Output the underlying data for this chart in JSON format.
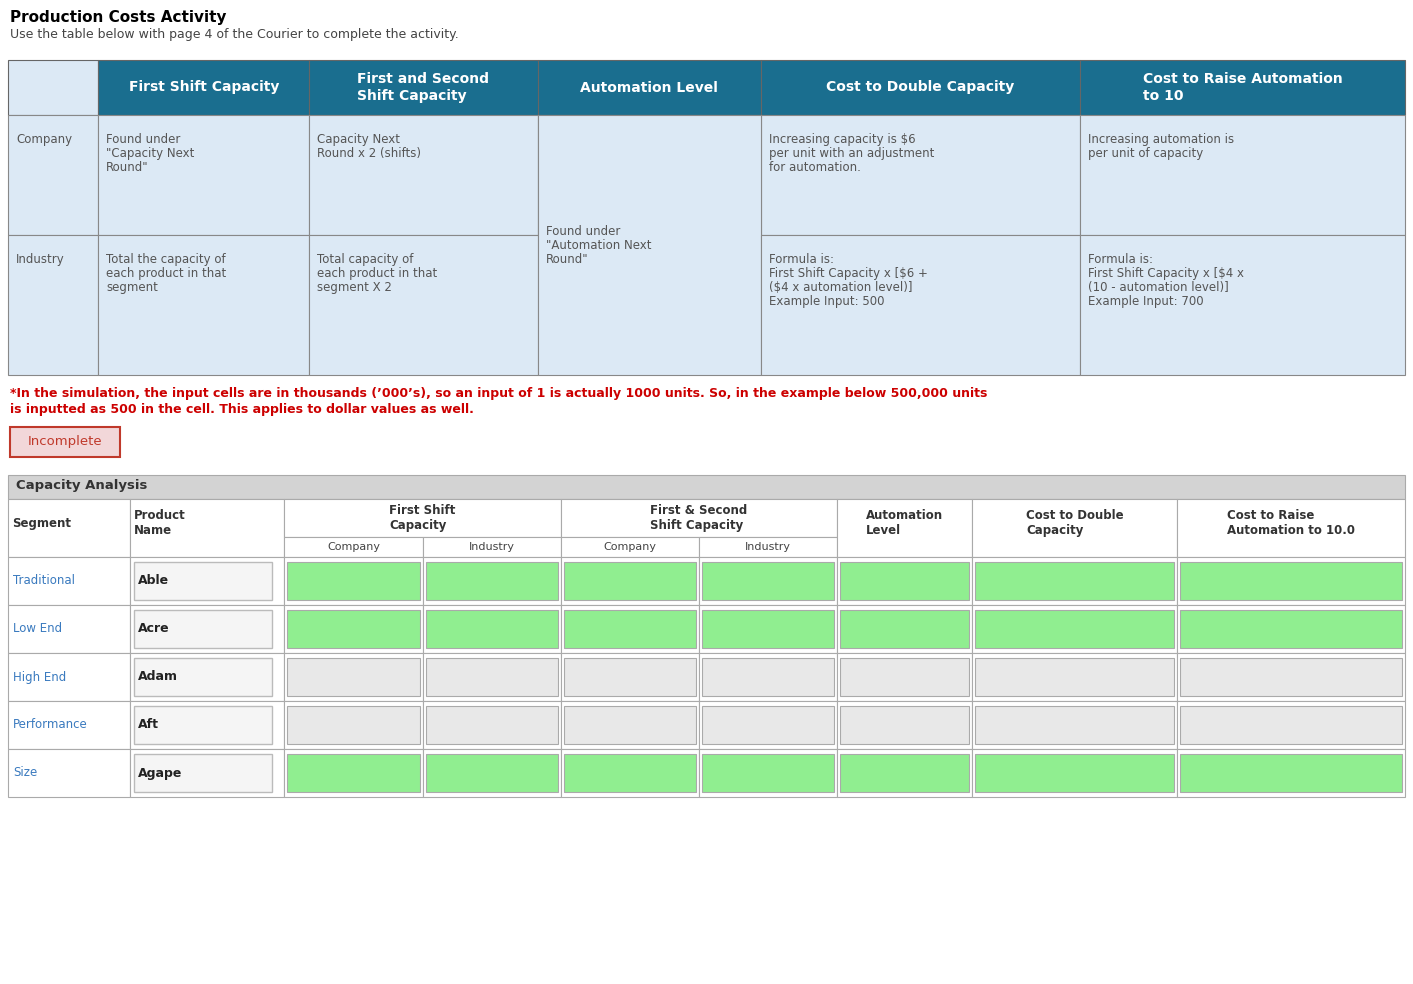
{
  "title": "Production Costs Activity",
  "subtitle": "Use the table below with page 4 of the Courier to complete the activity.",
  "header_bg": "#1a6e8f",
  "header_text_color": "#ffffff",
  "cell_bg_light": "#dce9f5",
  "note_text_line1": "*In the simulation, the input cells are in thousands (’000’s), so an input of 1 is actually 1000 units. So, in the example below 500,000 units",
  "note_text_line2": "is inputted as 500 in the cell. This applies to dollar values as well.",
  "incomplete_label": "Incomplete",
  "incomplete_bg": "#f2d7d9",
  "incomplete_text_color": "#c0392b",
  "incomplete_border": "#c0392b",
  "table2_title": "Capacity Analysis",
  "green_cell": "#90ee90",
  "white_cell": "#e8e8e8",
  "table2_header_bg": "#d3d3d3",
  "table1_headers": [
    "",
    "First Shift Capacity",
    "First and Second\nShift Capacity",
    "Automation Level",
    "Cost to Double Capacity",
    "Cost to Raise Automation\nto 10"
  ],
  "table1_company_row": [
    "Company",
    "Found under\n\"Capacity Next\nRound\"",
    "Capacity Next\nRound x 2 (shifts)",
    "",
    "Increasing capacity is $6\nper unit with an adjustment\nfor automation.",
    "Increasing automation is\nper unit of capacity"
  ],
  "table1_industry_row": [
    "Industry",
    "Total the capacity of\neach product in that\nsegment",
    "Total capacity of\neach product in that\nsegment X 2",
    "Found under\n\"Automation Next\nRound\"",
    "Formula is:\nFirst Shift Capacity x [$6 +\n($4 x automation level)]\nExample Input: 500",
    "Formula is:\nFirst Shift Capacity x [$4 x\n(10 - automation level)]\nExample Input: 700"
  ],
  "table2_rows": [
    [
      "Traditional",
      "Able",
      "green",
      "green",
      "green",
      "green",
      "green",
      "green",
      "green"
    ],
    [
      "Low End",
      "Acre",
      "green",
      "green",
      "green",
      "green",
      "green",
      "green",
      "green"
    ],
    [
      "High End",
      "Adam",
      "white",
      "white",
      "white",
      "white",
      "white",
      "white",
      "white"
    ],
    [
      "Performance",
      "Aft",
      "white",
      "white",
      "white",
      "white",
      "white",
      "white",
      "white"
    ],
    [
      "Size",
      "Agape",
      "green",
      "green",
      "green",
      "green",
      "green",
      "green",
      "green"
    ]
  ]
}
